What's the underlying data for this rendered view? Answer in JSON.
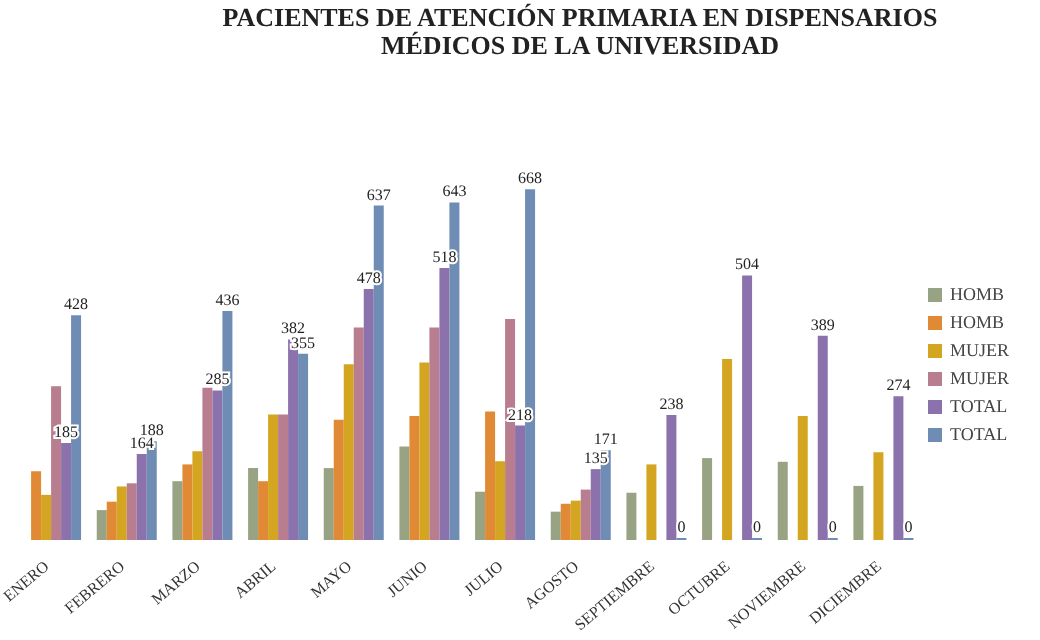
{
  "chart_data": {
    "type": "bar",
    "title": "PACIENTES DE ATENCIÓN PRIMARIA  EN DISPENSARIOS\nMÉDICOS  DE LA UNIVERSIDAD",
    "categories": [
      "ENERO",
      "FEBRERO",
      "MARZO",
      "ABRIL",
      "MAYO",
      "JUNIO",
      "JULIO",
      "AGOSTO",
      "SEPTIEMBRE",
      "OCTUBRE",
      "NOVIEMBRE",
      "DICIEMBRE"
    ],
    "legend": "right",
    "grid": false,
    "series": [
      {
        "name": "HOMB",
        "color": "#98a383",
        "values": [
          null,
          57,
          112,
          137,
          137,
          178,
          92,
          54,
          90,
          156,
          149,
          103
        ]
      },
      {
        "name": "HOMB",
        "color": "#e08a35",
        "values": [
          131,
          73,
          144,
          112,
          229,
          236,
          245,
          69,
          null,
          null,
          null,
          null
        ]
      },
      {
        "name": "MUJER",
        "color": "#d4a520",
        "values": [
          86,
          102,
          169,
          239,
          335,
          338,
          150,
          75,
          144,
          345,
          236,
          167
        ]
      },
      {
        "name": "MUJER",
        "color": "#b87d8e",
        "values": [
          293,
          108,
          290,
          239,
          405,
          405,
          421,
          96,
          null,
          null,
          null,
          null
        ]
      },
      {
        "name": "TOTAL",
        "color": "#8c72ac",
        "values": [
          185,
          164,
          285,
          382,
          478,
          518,
          218,
          135,
          238,
          504,
          389,
          274
        ],
        "value_labels": [
          "185",
          "164",
          "285",
          "382",
          "478",
          "518",
          "218",
          "135",
          "238",
          "504",
          "389",
          "274"
        ]
      },
      {
        "name": "TOTAL",
        "color": "#6e8cb4",
        "values": [
          428,
          188,
          436,
          355,
          637,
          643,
          668,
          171,
          0,
          0,
          0,
          0
        ],
        "value_labels": [
          "428",
          "188",
          "436",
          "355",
          "637",
          "643",
          "668",
          "171",
          "0",
          "0",
          "0",
          "0"
        ]
      }
    ]
  }
}
